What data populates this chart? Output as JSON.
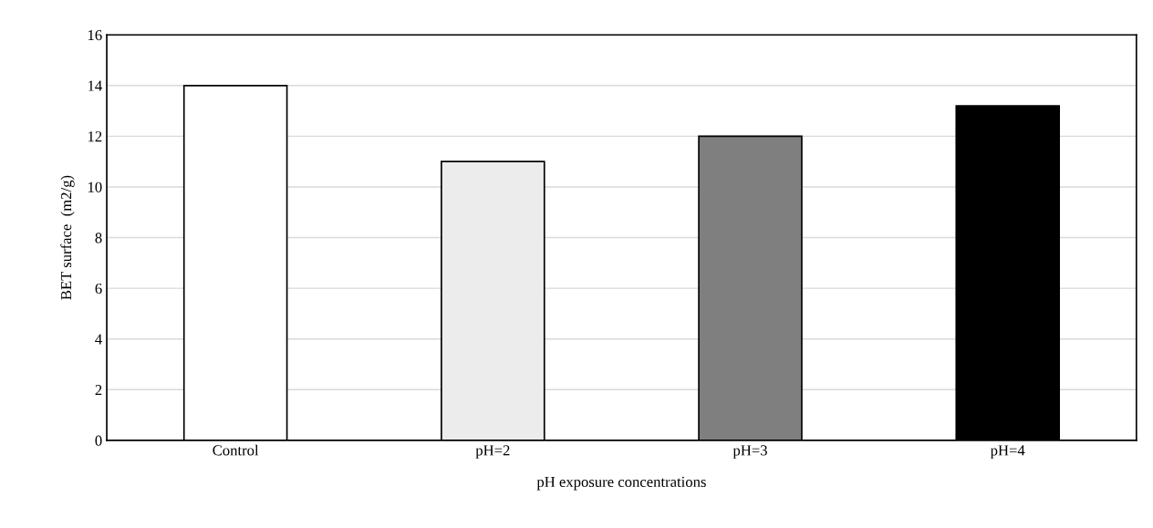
{
  "chart_data": {
    "type": "bar",
    "xlabel": "pH exposure concentrations",
    "ylabel": "BET surface  (m2/g)",
    "categories": [
      "Control",
      "pH=2",
      "pH=3",
      "pH=4"
    ],
    "values": [
      14,
      11,
      12,
      13.2
    ],
    "colors": [
      "#ffffff",
      "#ececec",
      "#7f7f7f",
      "#000000"
    ],
    "ylim": [
      0,
      16
    ],
    "yticks": [
      0,
      2,
      4,
      6,
      8,
      10,
      12,
      14,
      16
    ],
    "grid": "y",
    "legend": false
  }
}
